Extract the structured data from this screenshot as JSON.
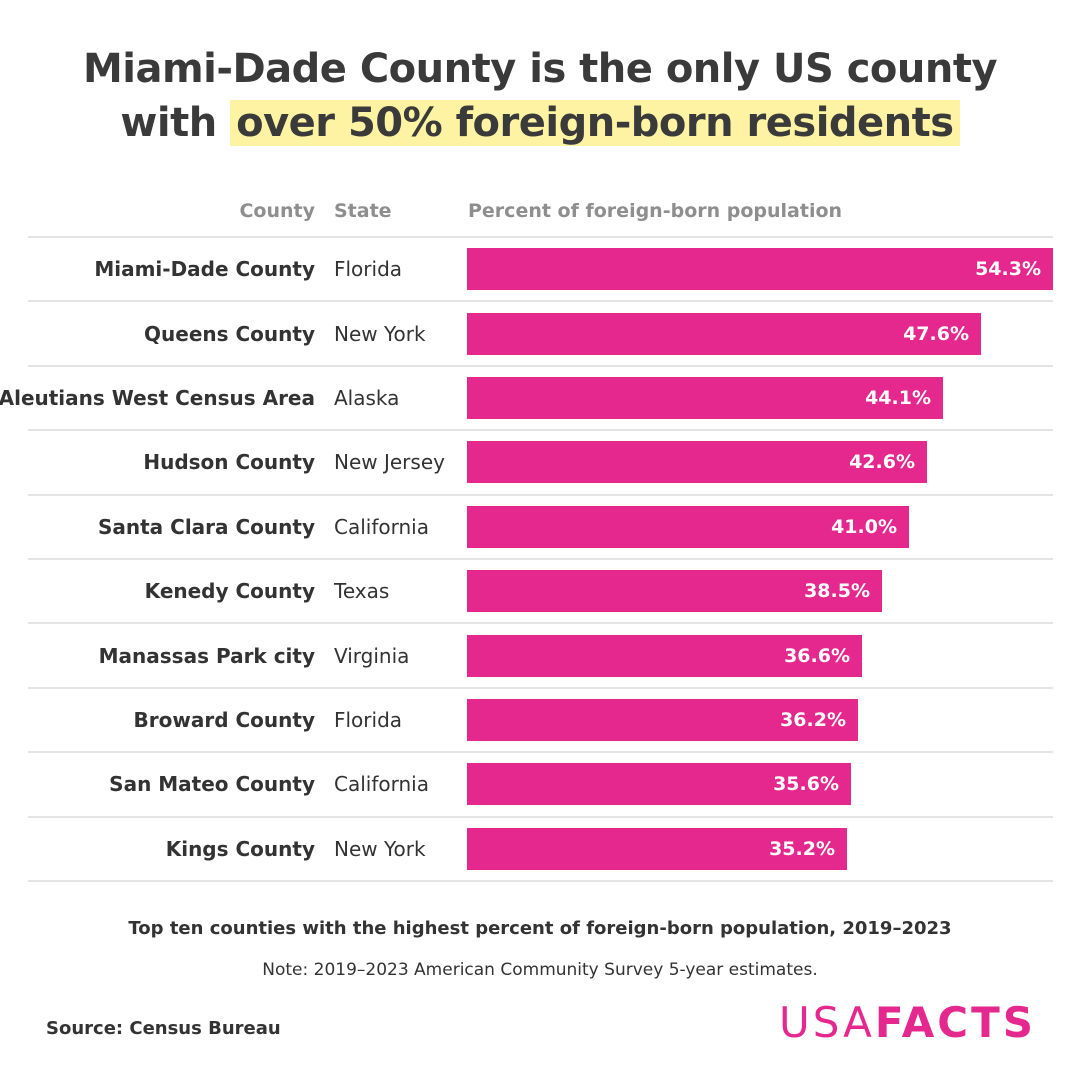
{
  "title": {
    "line1": "Miami-Dade County is the only US county",
    "line2_prefix": "with",
    "line2_highlight": "over 50% foreign-born residents"
  },
  "headers": {
    "county": "County",
    "state": "State",
    "percent": "Percent of foreign-born population"
  },
  "chart_data": {
    "type": "bar",
    "orientation": "horizontal",
    "title": "Miami-Dade County is the only US county with over 50% foreign-born residents",
    "xlabel": "Percent of foreign-born population",
    "ylabel": "County",
    "xlim": [
      0,
      54.3
    ],
    "grid": false,
    "legend": "none",
    "rows": [
      {
        "county": "Miami-Dade County",
        "state": "Florida",
        "value": 54.3,
        "label": "54.3%"
      },
      {
        "county": "Queens County",
        "state": "New York",
        "value": 47.6,
        "label": "47.6%"
      },
      {
        "county": "Aleutians West Census Area",
        "state": "Alaska",
        "value": 44.1,
        "label": "44.1%"
      },
      {
        "county": "Hudson County",
        "state": "New Jersey",
        "value": 42.6,
        "label": "42.6%"
      },
      {
        "county": "Santa Clara County",
        "state": "California",
        "value": 41.0,
        "label": "41.0%"
      },
      {
        "county": "Kenedy County",
        "state": "Texas",
        "value": 38.5,
        "label": "38.5%"
      },
      {
        "county": "Manassas Park city",
        "state": "Virginia",
        "value": 36.6,
        "label": "36.6%"
      },
      {
        "county": "Broward County",
        "state": "Florida",
        "value": 36.2,
        "label": "36.2%"
      },
      {
        "county": "San Mateo County",
        "state": "California",
        "value": 35.6,
        "label": "35.6%"
      },
      {
        "county": "Kings County",
        "state": "New York",
        "value": 35.2,
        "label": "35.2%"
      }
    ]
  },
  "caption": "Top ten counties with the highest percent of foreign-born population, 2019–2023",
  "note": "Note: 2019–2023 American Community Survey 5-year estimates.",
  "source": "Source: Census Bureau",
  "logo": {
    "part1": "USA",
    "part2": "FACTS"
  },
  "colors": {
    "bar": "#e5288d",
    "highlight": "#fdf3a2",
    "text": "#333333",
    "header": "#8e8e8e"
  }
}
